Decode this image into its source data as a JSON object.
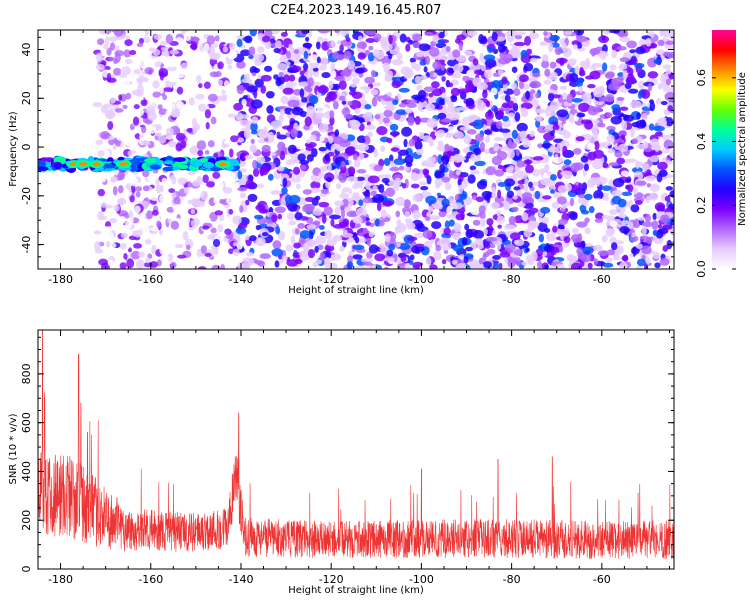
{
  "title": "C2E4.2023.149.16.45.R07",
  "chart_data": [
    {
      "type": "heatmap",
      "xlabel": "Height of straight line (km)",
      "ylabel": "Frequency (Hz)",
      "xlim": [
        -185,
        -44
      ],
      "ylim": [
        -50,
        48
      ],
      "xticks": [
        -180,
        -160,
        -140,
        -120,
        -100,
        -80,
        -60
      ],
      "yticks": [
        -40,
        -20,
        0,
        20,
        40
      ],
      "colorbar": {
        "label": "Normalized spectral amplitude",
        "range": [
          0.0,
          0.75
        ],
        "ticks": [
          0.0,
          0.2,
          0.4,
          0.6
        ],
        "colors": [
          "#ffffff",
          "#e6ccff",
          "#b266ff",
          "#7a00ff",
          "#2200ff",
          "#0055ff",
          "#00ccff",
          "#00ff99",
          "#66ff00",
          "#ffff00",
          "#ff8800",
          "#ff0000",
          "#ff0099"
        ]
      },
      "features": [
        {
          "x_range": [
            -185,
            -141
          ],
          "frequency": -7,
          "amplitude": 0.55,
          "description": "narrow strong signal band"
        },
        {
          "x_range": [
            -172,
            -141
          ],
          "frequency": [
            -50,
            48
          ],
          "amplitude": 0.08,
          "description": "sparse low amplitude noise"
        },
        {
          "x_range": [
            -141,
            -44
          ],
          "frequency": [
            -50,
            48
          ],
          "amplitude": 0.18,
          "description": "broadband noise"
        }
      ]
    },
    {
      "type": "line",
      "xlabel": "Height of straight line (km)",
      "ylabel": "SNR (10 * v/v)",
      "xlim": [
        -185,
        -44
      ],
      "ylim": [
        0,
        980
      ],
      "xticks": [
        -180,
        -160,
        -140,
        -120,
        -100,
        -80,
        -60
      ],
      "yticks": [
        0,
        200,
        400,
        600,
        800
      ],
      "color": "#ee3333",
      "peaks": [
        {
          "x": -184,
          "y": 980
        },
        {
          "x": -183.5,
          "y": 700
        },
        {
          "x": -176,
          "y": 880
        },
        {
          "x": -175.5,
          "y": 680
        },
        {
          "x": -174,
          "y": 560
        },
        {
          "x": -140.5,
          "y": 640
        },
        {
          "x": -71,
          "y": 460
        },
        {
          "x": -83,
          "y": 450
        },
        {
          "x": -100,
          "y": 410
        }
      ],
      "envelope": [
        {
          "x": -185,
          "mean": 320,
          "spread": 180
        },
        {
          "x": -178,
          "mean": 300,
          "spread": 180
        },
        {
          "x": -172,
          "mean": 230,
          "spread": 140
        },
        {
          "x": -165,
          "mean": 160,
          "spread": 90
        },
        {
          "x": -150,
          "mean": 150,
          "spread": 80
        },
        {
          "x": -143,
          "mean": 170,
          "spread": 90
        },
        {
          "x": -141,
          "mean": 380,
          "spread": 140
        },
        {
          "x": -139,
          "mean": 130,
          "spread": 80
        },
        {
          "x": -120,
          "mean": 120,
          "spread": 75
        },
        {
          "x": -100,
          "mean": 125,
          "spread": 80
        },
        {
          "x": -80,
          "mean": 125,
          "spread": 80
        },
        {
          "x": -60,
          "mean": 120,
          "spread": 80
        },
        {
          "x": -44,
          "mean": 120,
          "spread": 80
        }
      ]
    }
  ]
}
